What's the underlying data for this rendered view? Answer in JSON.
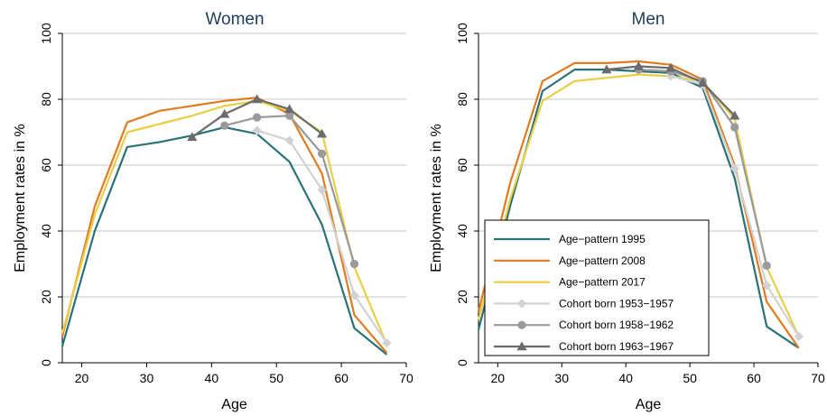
{
  "chart_data": [
    {
      "type": "line",
      "title": "Women",
      "xlabel": "Age",
      "ylabel": "Employment rates in %",
      "xlim": [
        17,
        70
      ],
      "ylim": [
        0,
        100
      ],
      "xticks": [
        20,
        30,
        40,
        50,
        60,
        70
      ],
      "yticks": [
        0,
        20,
        40,
        60,
        80,
        100
      ],
      "grid": "horizontal",
      "series": [
        {
          "name": "Age−pattern 1995",
          "color": "#2a7178",
          "marker": "none",
          "x": [
            17,
            22,
            27,
            32,
            37,
            42,
            47,
            52,
            57,
            62,
            67
          ],
          "y": [
            5,
            40,
            65.5,
            67,
            69,
            71.5,
            69.5,
            61,
            42,
            10.5,
            2.5
          ]
        },
        {
          "name": "Age−pattern 2008",
          "color": "#e07b20",
          "marker": "none",
          "x": [
            17,
            22,
            27,
            32,
            37,
            42,
            47,
            52,
            57,
            62,
            67
          ],
          "y": [
            8,
            47.5,
            73,
            76.5,
            78,
            79.5,
            80.5,
            75.5,
            57.5,
            14.5,
            3
          ]
        },
        {
          "name": "Age−pattern 2017",
          "color": "#e8cf45",
          "marker": "none",
          "x": [
            17,
            22,
            27,
            32,
            37,
            42,
            47,
            52,
            57,
            62,
            67
          ],
          "y": [
            9,
            45,
            70,
            72.5,
            75,
            78,
            79.5,
            76.5,
            70,
            29,
            5.5
          ]
        },
        {
          "name": "Cohort born 1953−1957",
          "color": "#d2d2d2",
          "marker": "diamond",
          "x": [
            47,
            52,
            57,
            62,
            67
          ],
          "y": [
            70.5,
            67.5,
            52.5,
            20.5,
            6
          ]
        },
        {
          "name": "Cohort born 1958−1962",
          "color": "#9a9a9a",
          "marker": "circle",
          "x": [
            42,
            47,
            52,
            57,
            62
          ],
          "y": [
            72,
            74.5,
            75,
            63.5,
            30
          ]
        },
        {
          "name": "Cohort born 1963−1967",
          "color": "#6b6b6b",
          "marker": "triangle",
          "x": [
            37,
            42,
            47,
            52,
            57
          ],
          "y": [
            68.5,
            75.5,
            80,
            77,
            69.5
          ]
        }
      ]
    },
    {
      "type": "line",
      "title": "Men",
      "xlabel": "Age",
      "ylabel": "Employment rates in %",
      "xlim": [
        17,
        70
      ],
      "ylim": [
        0,
        100
      ],
      "xticks": [
        20,
        30,
        40,
        50,
        60,
        70
      ],
      "yticks": [
        0,
        20,
        40,
        60,
        80,
        100
      ],
      "grid": "horizontal",
      "legend_position": "bottom-left",
      "series": [
        {
          "name": "Age−pattern 1995",
          "color": "#2a7178",
          "marker": "none",
          "x": [
            17,
            22,
            27,
            32,
            37,
            42,
            47,
            52,
            57,
            62,
            67
          ],
          "y": [
            10,
            48,
            82.5,
            89,
            89,
            88.5,
            88,
            83.5,
            56,
            11,
            4.5
          ]
        },
        {
          "name": "Age−pattern 2008",
          "color": "#e07b20",
          "marker": "none",
          "x": [
            17,
            22,
            27,
            32,
            37,
            42,
            47,
            52,
            57,
            62,
            67
          ],
          "y": [
            15.5,
            55,
            85.5,
            91,
            91,
            91.5,
            90.5,
            86,
            60,
            18.5,
            4.5
          ]
        },
        {
          "name": "Age−pattern 2017",
          "color": "#e8cf45",
          "marker": "none",
          "x": [
            17,
            22,
            27,
            32,
            37,
            42,
            47,
            52,
            57,
            62,
            67
          ],
          "y": [
            13,
            50,
            79.5,
            85.5,
            86.5,
            87.5,
            87,
            85.5,
            74,
            29,
            8
          ]
        },
        {
          "name": "Cohort born 1953−1957",
          "color": "#d2d2d2",
          "marker": "diamond",
          "x": [
            47,
            52,
            57,
            62,
            67
          ],
          "y": [
            87,
            84.5,
            59,
            23.5,
            8
          ]
        },
        {
          "name": "Cohort born 1958−1962",
          "color": "#9a9a9a",
          "marker": "circle",
          "x": [
            42,
            47,
            52,
            57,
            62
          ],
          "y": [
            89,
            88.5,
            85.5,
            71.5,
            29.5
          ]
        },
        {
          "name": "Cohort born 1963−1967",
          "color": "#6b6b6b",
          "marker": "triangle",
          "x": [
            37,
            42,
            47,
            52,
            57
          ],
          "y": [
            89,
            90,
            89.5,
            85,
            75
          ]
        }
      ]
    }
  ]
}
